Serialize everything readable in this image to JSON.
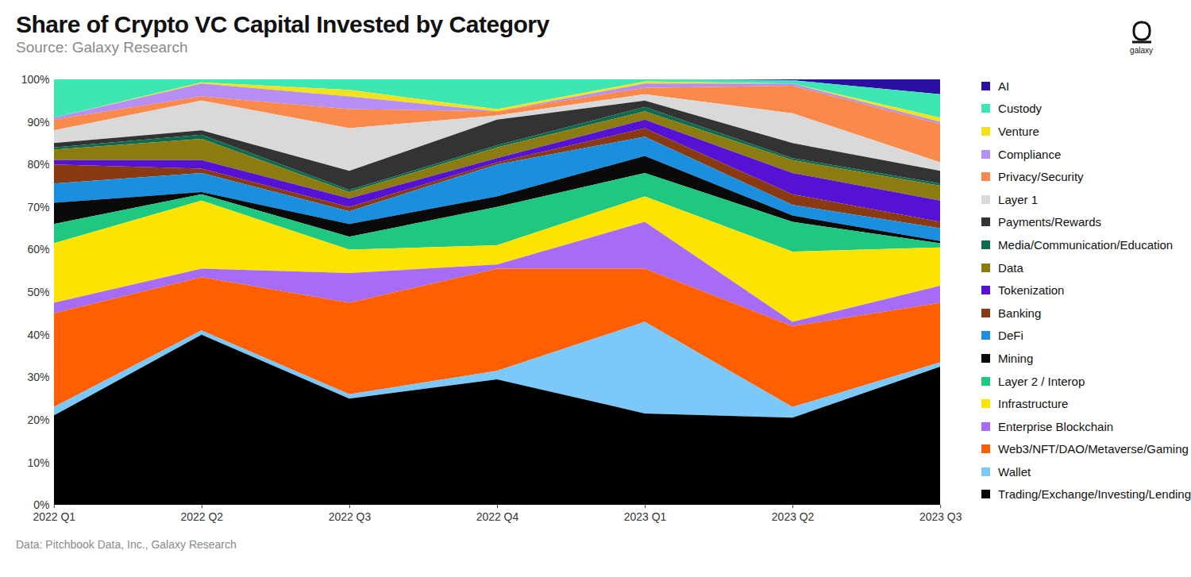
{
  "chart_data": {
    "type": "area",
    "stacked": true,
    "title": "Share of Crypto VC Capital Invested by Category",
    "subtitle": "Source: Galaxy Research",
    "caption": "Data: Pitchbook Data, Inc., Galaxy Research",
    "brand": "galaxy",
    "legend": "right",
    "grid": false,
    "categories": [
      "2022 Q1",
      "2022 Q2",
      "2022 Q3",
      "2022 Q4",
      "2023 Q1",
      "2023 Q2",
      "2023 Q3"
    ],
    "ylim": [
      0,
      100
    ],
    "yticks": [
      {
        "value": 0,
        "label": "0%"
      },
      {
        "value": 10,
        "label": "10%"
      },
      {
        "value": 20,
        "label": "20%"
      },
      {
        "value": 30,
        "label": "30%"
      },
      {
        "value": 40,
        "label": "40%"
      },
      {
        "value": 50,
        "label": "50%"
      },
      {
        "value": 60,
        "label": "60%"
      },
      {
        "value": 70,
        "label": "70%"
      },
      {
        "value": 80,
        "label": "80%"
      },
      {
        "value": 90,
        "label": "90%"
      },
      {
        "value": 100,
        "label": "100%"
      }
    ],
    "series": [
      {
        "name": "AI",
        "color": "#2b0fa0",
        "values": [
          0,
          0,
          0,
          0,
          0,
          0.2,
          3.5
        ]
      },
      {
        "name": "Custody",
        "color": "#3ee6b4",
        "values": [
          9,
          0.7,
          2.5,
          7,
          0.5,
          0.8,
          5.5
        ]
      },
      {
        "name": "Venture",
        "color": "#f2e21c",
        "values": [
          0,
          0.3,
          1.5,
          0.5,
          0.5,
          0,
          1
        ]
      },
      {
        "name": "Compliance",
        "color": "#b78ef3",
        "values": [
          0.5,
          3,
          3,
          0,
          1,
          0.5,
          0.5
        ]
      },
      {
        "name": "Privacy/Security",
        "color": "#f98a4c",
        "values": [
          2.5,
          1,
          4.5,
          1,
          1.5,
          6.5,
          9
        ]
      },
      {
        "name": "Layer 1",
        "color": "#d9d9d9",
        "values": [
          3,
          7,
          10,
          1,
          1.5,
          7,
          2
        ]
      },
      {
        "name": "Payments/Rewards",
        "color": "#333333",
        "values": [
          1,
          1,
          4.5,
          6,
          1.5,
          3.5,
          3
        ]
      },
      {
        "name": "Media/Communication/Education",
        "color": "#0e6b4f",
        "values": [
          0.5,
          1,
          0.5,
          0.5,
          1,
          0.5,
          0.5
        ]
      },
      {
        "name": "Data",
        "color": "#8c7b10",
        "values": [
          2.5,
          5,
          1.5,
          2.5,
          2,
          3,
          3.5
        ]
      },
      {
        "name": "Tokenization",
        "color": "#5612d4",
        "values": [
          1,
          2,
          2,
          1,
          2,
          5,
          5
        ]
      },
      {
        "name": "Banking",
        "color": "#8a3a10",
        "values": [
          4.5,
          1,
          1,
          0.5,
          2,
          2.5,
          1.5
        ]
      },
      {
        "name": "DeFi",
        "color": "#1a8fe0",
        "values": [
          4.5,
          4.5,
          3,
          7.5,
          4.5,
          2.5,
          3
        ]
      },
      {
        "name": "Mining",
        "color": "#0a0a0a",
        "values": [
          5,
          0.5,
          3,
          2.5,
          4,
          1.5,
          0.5
        ]
      },
      {
        "name": "Layer 2 / Interop",
        "color": "#1fc880",
        "values": [
          4.5,
          1.5,
          3,
          9,
          5.5,
          7,
          1
        ]
      },
      {
        "name": "Infrastructure",
        "color": "#fde400",
        "values": [
          14,
          16,
          5.5,
          4.5,
          6,
          16.5,
          9
        ]
      },
      {
        "name": "Enterprise Blockchain",
        "color": "#a66cf7",
        "values": [
          2.5,
          2,
          7,
          1,
          11,
          1,
          4
        ]
      },
      {
        "name": "Web3/NFT/DAO/Metaverse/Gaming",
        "color": "#ff5f00",
        "values": [
          22,
          12.5,
          21.5,
          24,
          12.5,
          19,
          14
        ]
      },
      {
        "name": "Wallet",
        "color": "#7cc8f8",
        "values": [
          2,
          1,
          1,
          2,
          21.5,
          2.5,
          1
        ]
      },
      {
        "name": "Trading/Exchange/Investing/Lending",
        "color": "#000000",
        "values": [
          21,
          40,
          25,
          29.5,
          21.5,
          20.5,
          32.5
        ]
      }
    ]
  }
}
